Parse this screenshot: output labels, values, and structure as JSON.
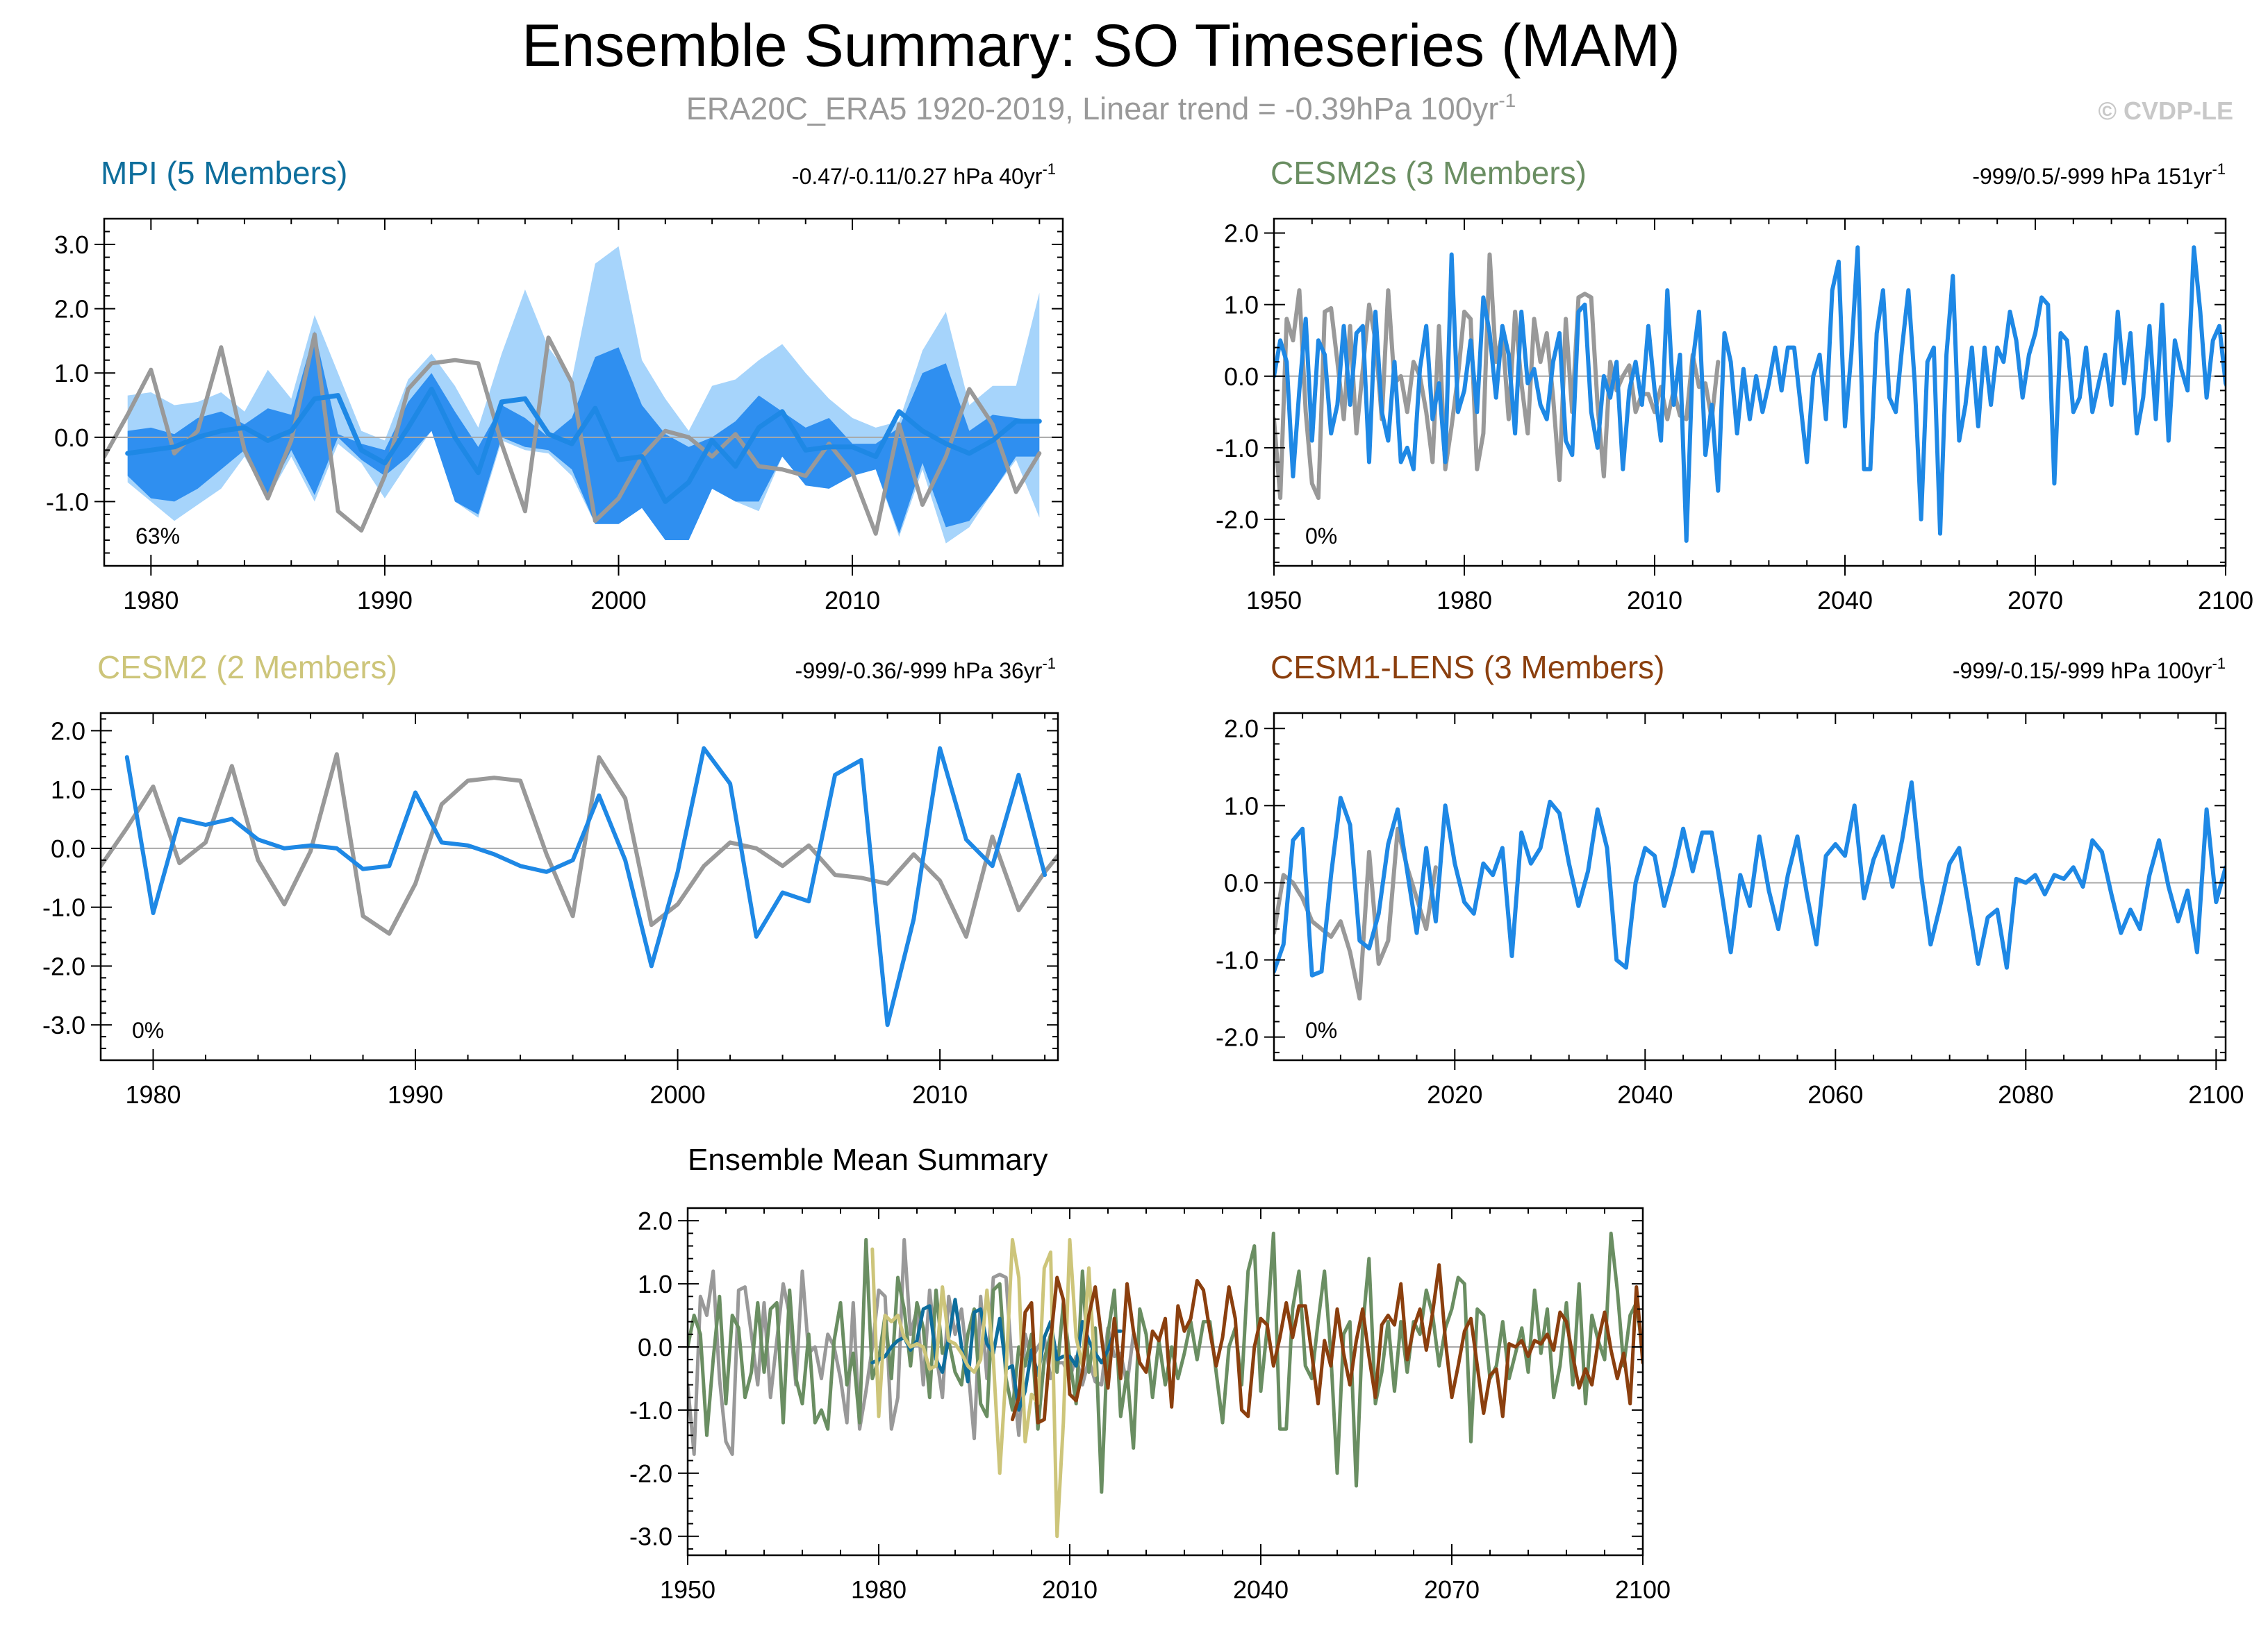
{
  "figure": {
    "title": "Ensemble Summary: SO Timeseries (MAM)",
    "subtitle": "ERA20C_ERA5 1920-2019, Linear trend = -0.39hPa 100yr",
    "subtitle_sup": "-1",
    "copyright": "© CVDP-LE"
  },
  "colors": {
    "obs": "#999999",
    "member_blue": "#1e88e5",
    "spread_light": "#a6d4fb",
    "spread_dark": "#2f8ff0",
    "mpi": "#0e6e9c",
    "cesm2s": "#6a8e62",
    "cesm2": "#cdc57a",
    "cesm1": "#8b3f0e"
  },
  "chart_data": [
    {
      "id": "mpi",
      "type": "line",
      "title": "MPI (5 Members)",
      "title_color": "#0e6e9c",
      "trend": "-0.47/-0.11/0.27 hPa 40yr",
      "trend_sup": "-1",
      "percent": "63%",
      "xlim": [
        1978,
        2019
      ],
      "ylim": [
        -2.0,
        3.4
      ],
      "yticks": [
        3.0,
        2.0,
        1.0,
        0.0,
        -1.0
      ],
      "ytick_labels": [
        "3.0",
        "2.0",
        "1.0",
        "0.0",
        "-1.0"
      ],
      "xticks": [
        1980,
        1990,
        2000,
        2010
      ],
      "xtick_labels": [
        "1980",
        "1990",
        "2000",
        "2010"
      ],
      "x_start": 1979,
      "bands": [
        {
          "name": "ensemble range",
          "color": "#a6d4fb",
          "upper": [
            0.65,
            0.7,
            0.5,
            0.55,
            0.7,
            0.4,
            1.05,
            0.6,
            1.9,
            1.0,
            0.1,
            -0.05,
            0.9,
            1.3,
            0.8,
            0.15,
            1.3,
            2.3,
            1.4,
            0.9,
            2.7,
            2.97,
            1.2,
            0.6,
            0.1,
            0.8,
            0.9,
            1.2,
            1.45,
            1.0,
            0.6,
            0.3,
            0.15,
            0.25,
            1.35,
            1.95,
            0.5,
            0.8,
            0.8,
            2.25
          ],
          "lower": [
            -0.7,
            -1.0,
            -1.3,
            -1.05,
            -0.8,
            -0.3,
            -0.95,
            -0.3,
            -1.0,
            -0.1,
            -0.4,
            -0.95,
            -0.4,
            0.1,
            -1.0,
            -1.25,
            -0.05,
            -0.2,
            -0.25,
            -0.6,
            -1.35,
            -1.35,
            -1.1,
            -1.6,
            -1.6,
            -0.8,
            -1.0,
            -1.15,
            -0.3,
            -0.75,
            -0.8,
            -0.6,
            -0.5,
            -1.55,
            -0.5,
            -1.65,
            -1.4,
            -0.85,
            -0.35,
            -1.25
          ]
        },
        {
          "name": "10-90% range",
          "color": "#2f8ff0",
          "upper": [
            0.1,
            0.15,
            0.05,
            0.3,
            0.4,
            0.2,
            0.45,
            0.35,
            1.65,
            0.05,
            -0.1,
            -0.2,
            0.55,
            1.0,
            0.4,
            -0.15,
            0.5,
            0.3,
            0.0,
            0.3,
            1.25,
            1.4,
            0.5,
            0.05,
            -0.15,
            0.0,
            0.25,
            0.65,
            0.4,
            0.15,
            0.3,
            -0.1,
            -0.1,
            0.15,
            1.0,
            1.15,
            0.1,
            0.35,
            0.3,
            0.25
          ],
          "lower": [
            -0.6,
            -0.95,
            -1.0,
            -0.8,
            -0.5,
            -0.2,
            -0.9,
            -0.2,
            -0.9,
            0.0,
            -0.35,
            -0.6,
            -0.3,
            0.1,
            -1.0,
            -1.2,
            0.0,
            -0.15,
            -0.2,
            -0.5,
            -1.35,
            -1.35,
            -1.1,
            -1.6,
            -1.6,
            -0.8,
            -1.0,
            -1.0,
            -0.3,
            -0.75,
            -0.8,
            -0.6,
            -0.5,
            -1.5,
            -0.4,
            -1.4,
            -1.3,
            -0.85,
            -0.3,
            -0.3
          ]
        }
      ],
      "series": [
        {
          "name": "ERA20C_ERA5",
          "color": "#999999",
          "width": 6,
          "x_start": 1978,
          "values": [
            -0.3,
            0.35,
            1.05,
            -0.25,
            0.1,
            1.4,
            -0.2,
            -0.95,
            -0.05,
            1.6,
            -1.15,
            -1.45,
            -0.6,
            0.75,
            1.15,
            1.2,
            1.15,
            -0.1,
            -1.15,
            1.55,
            0.85,
            -1.3,
            -0.95,
            -0.3,
            0.1,
            0.0,
            -0.3,
            0.05,
            -0.45,
            -0.5,
            -0.6,
            -0.1,
            -0.55,
            -1.5,
            0.2,
            -1.05,
            -0.3,
            0.75,
            0.2,
            -0.85,
            -0.25
          ]
        },
        {
          "name": "ensemble mean",
          "color": "#1e88e5",
          "width": 7,
          "x_start": 1979,
          "values": [
            -0.25,
            -0.2,
            -0.15,
            0.0,
            0.1,
            0.15,
            -0.05,
            0.1,
            0.6,
            0.65,
            -0.2,
            -0.4,
            0.15,
            0.75,
            0.0,
            -0.55,
            0.55,
            0.6,
            0.05,
            -0.1,
            0.45,
            -0.35,
            -0.3,
            -1.0,
            -0.7,
            -0.05,
            -0.45,
            0.15,
            0.4,
            -0.2,
            -0.15,
            -0.15,
            -0.3,
            0.4,
            0.1,
            -0.1,
            -0.25,
            -0.05,
            0.25,
            0.25
          ]
        }
      ]
    },
    {
      "id": "cesm2s",
      "type": "line",
      "title": "CESM2s (3 Members)",
      "title_color": "#6a8e62",
      "trend": "-999/0.5/-999 hPa 151yr",
      "trend_sup": "-1",
      "percent": "0%",
      "xlim": [
        1950,
        2100
      ],
      "ylim": [
        -2.65,
        2.2
      ],
      "yticks": [
        2.0,
        1.0,
        0.0,
        -1.0,
        -2.0
      ],
      "ytick_labels": [
        "2.0",
        "1.0",
        "0.0",
        "-1.0",
        "-2.0"
      ],
      "xticks": [
        1950,
        1980,
        2010,
        2040,
        2070,
        2100
      ],
      "xtick_labels": [
        "1950",
        "1980",
        "2010",
        "2040",
        "2070",
        "2100"
      ],
      "series": [
        {
          "name": "ERA20C_ERA5",
          "color": "#999999",
          "width": 6,
          "x_start": 1950,
          "values": [
            -0.6,
            -1.7,
            0.8,
            0.5,
            1.2,
            -0.5,
            -1.5,
            -1.7,
            0.9,
            0.95,
            0.2,
            -0.6,
            0.7,
            -0.8,
            0.1,
            1.0,
            0.5,
            -0.6,
            1.2,
            -0.1,
            0.0,
            -0.5,
            0.2,
            0.0,
            -0.5,
            -1.2,
            0.7,
            -1.3,
            -0.7,
            0.0,
            0.9,
            0.8,
            -1.3,
            -0.8,
            1.7,
            0.2,
            0.6,
            -0.6,
            0.9,
            -0.1,
            -0.8,
            0.8,
            0.2,
            0.6,
            -0.3,
            -1.45,
            0.8,
            -0.5,
            1.1,
            1.15,
            1.1,
            -0.4,
            -1.4,
            0.2,
            -0.2,
            0.0,
            0.15,
            -0.5,
            -0.25,
            -0.25,
            -0.5,
            -0.15,
            -0.6,
            -0.2,
            -0.55,
            -0.6,
            0.3,
            -0.15,
            -0.1,
            -0.6,
            0.2
          ]
        },
        {
          "name": "ensemble mean",
          "color": "#1e88e5",
          "width": 6,
          "x_start": 1950,
          "values": [
            0.0,
            0.5,
            0.2,
            -1.4,
            -0.2,
            0.8,
            -0.9,
            0.5,
            0.3,
            -0.8,
            -0.4,
            0.7,
            -0.4,
            0.6,
            0.7,
            -1.2,
            0.9,
            -0.5,
            -0.9,
            0.2,
            -1.2,
            -1.0,
            -1.3,
            0.1,
            0.7,
            -0.6,
            -0.1,
            -1.2,
            1.7,
            -0.5,
            -0.2,
            0.5,
            -0.5,
            1.1,
            0.6,
            -0.3,
            0.7,
            0.3,
            -0.8,
            0.9,
            -0.1,
            0.1,
            -0.4,
            -0.6,
            0.2,
            0.6,
            -0.9,
            -1.1,
            0.9,
            1.0,
            -0.5,
            -1.0,
            0.0,
            -0.3,
            0.2,
            -1.3,
            -0.2,
            0.2,
            -0.4,
            0.7,
            -0.2,
            -0.9,
            1.2,
            -0.4,
            0.3,
            -2.3,
            0.2,
            0.9,
            -1.1,
            -0.4,
            -1.6,
            0.6,
            0.2,
            -0.8,
            0.1,
            -0.6,
            0.0,
            -0.5,
            -0.1,
            0.4,
            -0.2,
            0.4,
            0.4,
            -0.4,
            -1.2,
            0.0,
            0.3,
            -0.6,
            1.2,
            1.6,
            -0.7,
            0.3,
            1.8,
            -1.3,
            -1.3,
            0.6,
            1.2,
            -0.3,
            -0.5,
            0.4,
            1.2,
            -0.1,
            -2.0,
            0.2,
            0.4,
            -2.2,
            0.3,
            1.4,
            -0.9,
            -0.4,
            0.4,
            -0.7,
            0.4,
            -0.4,
            0.4,
            0.2,
            0.9,
            0.5,
            -0.3,
            0.3,
            0.6,
            1.1,
            1.0,
            -1.5,
            0.6,
            0.5,
            -0.5,
            -0.3,
            0.4,
            -0.5,
            -0.1,
            0.3,
            -0.4,
            0.9,
            -0.1,
            0.6,
            -0.8,
            -0.3,
            0.7,
            -0.6,
            1.0,
            -0.9,
            0.5,
            0.1,
            -0.2,
            1.8,
            0.9,
            -0.3,
            0.5,
            0.7,
            -0.1,
            -0.3,
            -0.6,
            0.9,
            1.0,
            0.8,
            -0.1,
            0.9,
            -0.4,
            -0.6,
            0.5,
            0.2,
            0.3,
            0.6,
            0.2,
            0.3,
            0.7,
            0.2,
            -0.8,
            0.5,
            0.1,
            0.3,
            0.5,
            -0.3,
            0.3,
            -0.5,
            0.2,
            -0.9,
            0.3,
            -0.3,
            0.2,
            0.1
          ]
        }
      ]
    },
    {
      "id": "cesm2",
      "type": "line",
      "title": "CESM2 (2 Members)",
      "title_color": "#cdc57a",
      "trend": "-999/-0.36/-999 hPa 36yr",
      "trend_sup": "-1",
      "percent": "0%",
      "xlim": [
        1978,
        2014.5
      ],
      "ylim": [
        -3.6,
        2.3
      ],
      "yticks": [
        2.0,
        1.0,
        0.0,
        -1.0,
        -2.0,
        -3.0
      ],
      "ytick_labels": [
        "2.0",
        "1.0",
        "0.0",
        "-1.0",
        "-2.0",
        "-3.0"
      ],
      "xticks": [
        1980,
        1990,
        2000,
        2010
      ],
      "xtick_labels": [
        "1980",
        "1990",
        "2000",
        "2010"
      ],
      "series": [
        {
          "name": "ERA20C_ERA5",
          "color": "#999999",
          "width": 6,
          "x_start": 1978,
          "values": [
            -0.3,
            0.35,
            1.05,
            -0.25,
            0.1,
            1.4,
            -0.2,
            -0.95,
            -0.05,
            1.6,
            -1.15,
            -1.45,
            -0.6,
            0.75,
            1.15,
            1.2,
            1.15,
            -0.1,
            -1.15,
            1.55,
            0.85,
            -1.3,
            -0.95,
            -0.3,
            0.1,
            0.0,
            -0.3,
            0.05,
            -0.45,
            -0.5,
            -0.6,
            -0.1,
            -0.55,
            -1.5,
            0.2,
            -1.05,
            -0.4,
            0.15
          ]
        },
        {
          "name": "ensemble mean",
          "color": "#1e88e5",
          "width": 6,
          "x_start": 1979,
          "values": [
            1.55,
            -1.1,
            0.5,
            0.4,
            0.5,
            0.15,
            0.0,
            0.05,
            0.0,
            -0.35,
            -0.3,
            0.95,
            0.1,
            0.05,
            -0.1,
            -0.3,
            -0.4,
            -0.2,
            0.9,
            -0.2,
            -2.0,
            -0.4,
            1.7,
            1.1,
            -1.5,
            -0.75,
            -0.9,
            1.25,
            1.5,
            -3.0,
            -1.2,
            1.7,
            0.15,
            -0.3,
            1.25,
            -0.45
          ]
        }
      ]
    },
    {
      "id": "cesm1",
      "type": "line",
      "title": "CESM1-LENS (3 Members)",
      "title_color": "#8b3f0e",
      "trend": "-999/-0.15/-999 hPa 100yr",
      "trend_sup": "-1",
      "percent": "0%",
      "xlim": [
        2001,
        2101
      ],
      "ylim": [
        -2.3,
        2.2
      ],
      "yticks": [
        2.0,
        1.0,
        0.0,
        -1.0,
        -2.0
      ],
      "ytick_labels": [
        "2.0",
        "1.0",
        "0.0",
        "-1.0",
        "-2.0"
      ],
      "xticks": [
        2020,
        2040,
        2060,
        2080,
        2100
      ],
      "xtick_labels": [
        "2020",
        "2040",
        "2060",
        "2080",
        "2100"
      ],
      "series": [
        {
          "name": "ERA20C_ERA5",
          "color": "#999999",
          "width": 6,
          "x_start": 2001,
          "values": [
            -0.65,
            0.1,
            0.0,
            -0.2,
            -0.5,
            -0.6,
            -0.7,
            -0.5,
            -0.9,
            -1.5,
            0.4,
            -1.05,
            -0.75,
            0.7,
            0.2,
            -0.2,
            -0.6,
            0.2
          ]
        },
        {
          "name": "ensemble mean",
          "color": "#1e88e5",
          "width": 6,
          "x_start": 2001,
          "values": [
            -1.15,
            -0.8,
            0.55,
            0.7,
            -1.2,
            -1.15,
            0.1,
            1.1,
            0.75,
            -0.75,
            -0.85,
            -0.4,
            0.5,
            0.95,
            0.15,
            -0.65,
            0.45,
            -0.5,
            1.0,
            0.25,
            -0.25,
            -0.4,
            0.25,
            0.1,
            0.45,
            -0.95,
            0.65,
            0.25,
            0.45,
            1.05,
            0.9,
            0.25,
            -0.3,
            0.15,
            0.95,
            0.45,
            -1.0,
            -1.1,
            0.0,
            0.45,
            0.35,
            -0.3,
            0.15,
            0.7,
            0.15,
            0.65,
            0.65,
            -0.1,
            -0.9,
            0.1,
            -0.3,
            0.6,
            -0.1,
            -0.6,
            0.1,
            0.6,
            -0.15,
            -0.8,
            0.35,
            0.5,
            0.35,
            1.0,
            -0.2,
            0.3,
            0.6,
            -0.05,
            0.55,
            1.3,
            0.1,
            -0.8,
            -0.3,
            0.25,
            0.45,
            -0.3,
            -1.05,
            -0.45,
            -0.35,
            -1.1,
            0.05,
            0.0,
            0.1,
            -0.15,
            0.1,
            0.05,
            0.2,
            -0.05,
            0.55,
            0.4,
            -0.15,
            -0.65,
            -0.35,
            -0.6,
            0.1,
            0.55,
            -0.05,
            -0.5,
            -0.1,
            -0.9,
            0.95,
            -0.25,
            0.2,
            -0.25,
            -0.3,
            -0.35,
            0.2,
            -1.3,
            -0.7
          ]
        }
      ]
    },
    {
      "id": "ensemble-mean",
      "type": "line",
      "title": "Ensemble Mean Summary",
      "title_color": "#000000",
      "xlim": [
        1950,
        2100
      ],
      "ylim": [
        -3.3,
        2.2
      ],
      "yticks": [
        2.0,
        1.0,
        0.0,
        -1.0,
        -2.0,
        -3.0
      ],
      "ytick_labels": [
        "2.0",
        "1.0",
        "0.0",
        "-1.0",
        "-2.0",
        "-3.0"
      ],
      "xticks": [
        1950,
        1980,
        2010,
        2040,
        2070,
        2100
      ],
      "xtick_labels": [
        "1950",
        "1980",
        "2010",
        "2040",
        "2070",
        "2100"
      ],
      "series_refs": [
        {
          "from": "cesm2s",
          "index": 0,
          "color": "#999999",
          "width": 5
        },
        {
          "from": "cesm2s",
          "index": 1,
          "color": "#6a8e62",
          "width": 5
        },
        {
          "from": "mpi",
          "index": 1,
          "color": "#0e6e9c",
          "width": 5
        },
        {
          "from": "cesm2",
          "index": 1,
          "color": "#cdc57a",
          "width": 5
        },
        {
          "from": "cesm1",
          "index": 1,
          "color": "#8b3f0e",
          "width": 5
        }
      ]
    }
  ]
}
